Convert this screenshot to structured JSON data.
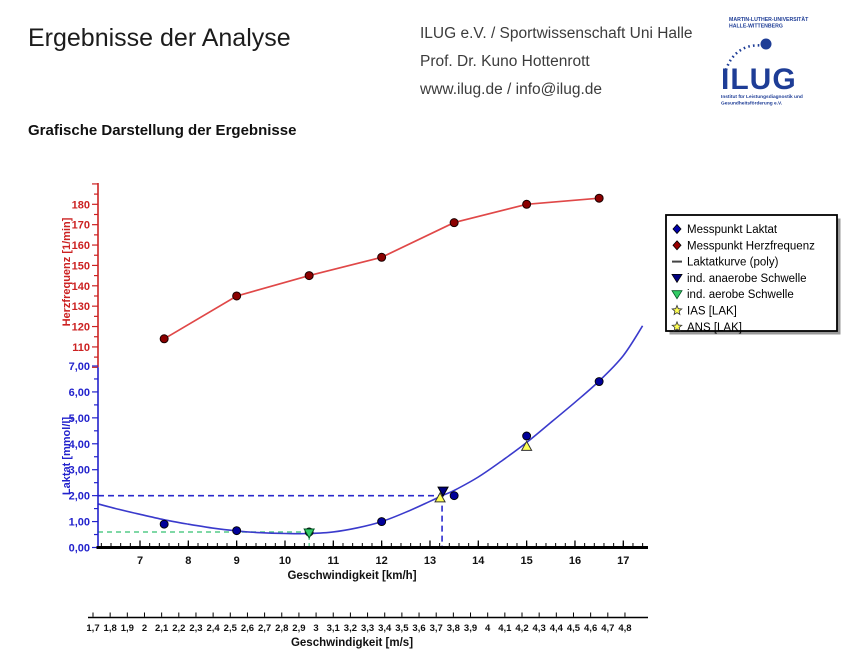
{
  "header": {
    "title": "Ergebnisse der Analyse",
    "org_line1": "ILUG e.V. / Sportwissenschaft Uni Halle",
    "org_line2": "Prof. Dr. Kuno Hottenrott",
    "org_line3": "www.ilug.de / info@ilug.de",
    "logo": {
      "top_line1": "MARTIN-LUTHER-UNIVERSITÄT",
      "top_line2": "HALLE-WITTENBERG",
      "name": "ILUG",
      "bottom_line1": "Institut für Leistungsdiagnostik und",
      "bottom_line2": "Gesundheitsförderung e.V.",
      "color": "#1e3d96"
    }
  },
  "section_heading": "Grafische Darstellung der Ergebnisse",
  "chart_data": {
    "type": "line",
    "x_axis": {
      "label": "Geschwindigkeit [km/h]",
      "ticks": [
        7,
        8,
        9,
        10,
        11,
        12,
        13,
        14,
        15,
        16,
        17
      ],
      "range": [
        6.1,
        17.5
      ]
    },
    "x_axis_ms": {
      "label": "Geschwindigkeit [m/s]",
      "tick_min": 1.7,
      "tick_max": 4.8,
      "tick_step": 0.1
    },
    "y_axis_heartrate": {
      "label": "Herzfrequenz [1/min]",
      "color": "#cc2222",
      "ticks": [
        110,
        120,
        130,
        140,
        150,
        160,
        170,
        180
      ],
      "range": [
        100,
        190
      ]
    },
    "y_axis_lactate": {
      "label": "Laktat [mmol/l]",
      "color": "#2222cc",
      "ticks": [
        0,
        1,
        2,
        3,
        4,
        5,
        6,
        7
      ],
      "tick_labels": [
        "0,00",
        "1,00",
        "2,00",
        "3,00",
        "4,00",
        "5,00",
        "6,00",
        "7,00"
      ],
      "range": [
        0,
        7
      ]
    },
    "speeds_kmh": [
      7.5,
      9,
      10.5,
      12,
      13.5,
      15,
      16.5
    ],
    "heartrate": {
      "name": "Messpunkt Herzfrequenz",
      "values": [
        114,
        135,
        145,
        154,
        171,
        180,
        183
      ],
      "line_color": "#e04848",
      "marker_color": "#8b0000"
    },
    "lactate": {
      "name": "Messpunkt Laktat",
      "values": [
        0.9,
        0.65,
        0.6,
        1.0,
        2.0,
        4.3,
        6.4
      ],
      "marker_color": "#000099"
    },
    "lactate_curve": {
      "name": "Laktatkurve (poly)",
      "color": "#3a3acc",
      "points": [
        [
          6.13,
          1.68
        ],
        [
          6.5,
          1.5
        ],
        [
          7,
          1.28
        ],
        [
          7.5,
          1.07
        ],
        [
          8,
          0.9
        ],
        [
          8.5,
          0.75
        ],
        [
          9,
          0.64
        ],
        [
          9.5,
          0.57
        ],
        [
          10,
          0.54
        ],
        [
          10.5,
          0.54
        ],
        [
          11,
          0.6
        ],
        [
          11.5,
          0.76
        ],
        [
          12,
          1.0
        ],
        [
          12.5,
          1.36
        ],
        [
          13,
          1.78
        ],
        [
          13.25,
          2.0
        ],
        [
          13.5,
          2.2
        ],
        [
          14,
          2.72
        ],
        [
          14.5,
          3.36
        ],
        [
          15,
          4.05
        ],
        [
          15.5,
          4.82
        ],
        [
          16,
          5.6
        ],
        [
          16.5,
          6.42
        ],
        [
          17,
          7.4
        ],
        [
          17.4,
          8.55
        ]
      ]
    },
    "thresholds": {
      "anaerobic": {
        "label": "ind. anaerobe Schwelle",
        "speed_kmh": 13.25,
        "lactate": 2.0,
        "dash_color": "#2a2acc",
        "marker_color": "#000080"
      },
      "aerobic": {
        "label": "ind. aerobe Schwelle",
        "speed_kmh": 10.5,
        "lactate": 0.6,
        "dash_color": "#55cc88",
        "marker_color": "#33cc66"
      },
      "ias": {
        "label": "IAS [LAK]",
        "speed_kmh": 13.25,
        "lactate": 1.95,
        "marker_color": "#ffff55"
      },
      "ans": {
        "label": "ANS [LAK]",
        "speed_kmh": 15,
        "lactate": 3.9,
        "marker_color": "#ffff55"
      }
    },
    "legend": {
      "position": "right",
      "items": [
        {
          "label": "Messpunkt Laktat",
          "marker": "diamond-blue"
        },
        {
          "label": "Messpunkt Herzfrequenz",
          "marker": "diamond-red"
        },
        {
          "label": "Laktatkurve (poly)",
          "marker": "dash"
        },
        {
          "label": "ind. anaerobe Schwelle",
          "marker": "tri-down-navy"
        },
        {
          "label": "ind. aerobe Schwelle",
          "marker": "tri-down-green"
        },
        {
          "label": "IAS [LAK]",
          "marker": "star-yellow"
        },
        {
          "label": "ANS [LAK]",
          "marker": "star-yellow"
        }
      ]
    }
  }
}
